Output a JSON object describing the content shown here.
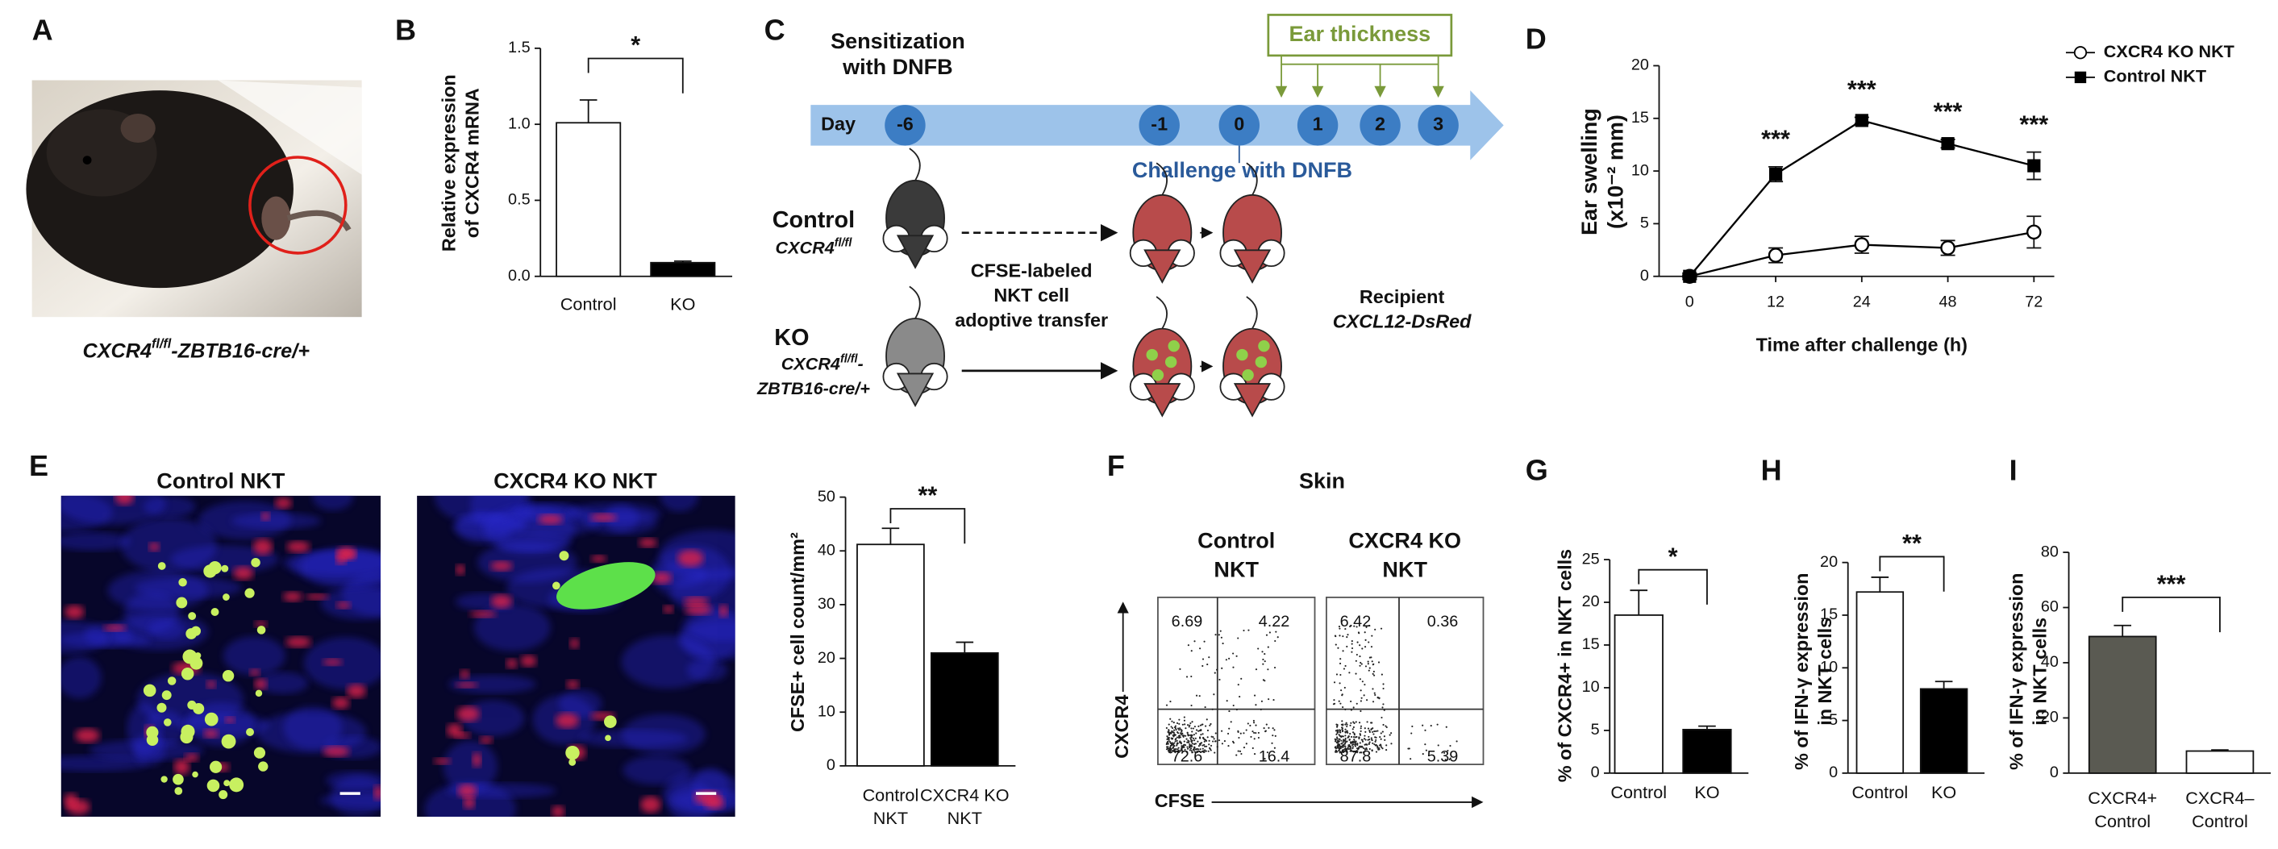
{
  "panel_labels": [
    "A",
    "B",
    "C",
    "D",
    "E",
    "F",
    "G",
    "H",
    "I"
  ],
  "panel_a": {
    "caption": [
      "CXCR4",
      "fl/fl",
      "-ZBTB16-cre/+"
    ]
  },
  "panel_c": {
    "sensitization": [
      "Sensitization",
      "with DNFB"
    ],
    "day_label": "Day",
    "days": [
      "-6",
      "-1",
      "0",
      "1",
      "2",
      "3"
    ],
    "ear_thickness": "Ear thickness",
    "challenge": "Challenge with DNFB",
    "control": {
      "name": "Control",
      "genotype": [
        "CXCR4",
        "fl/fl"
      ]
    },
    "ko": {
      "name": "KO",
      "genotype": [
        "CXCR4",
        "fl/fl",
        "-"
      ],
      "genotype_line2": "ZBTB16-cre/+"
    },
    "transfer": [
      "CFSE-labeled",
      "NKT cell",
      "adoptive transfer"
    ],
    "recipient": [
      "Recipient",
      "CXCL12-DsRed"
    ]
  },
  "panel_e": {
    "titles": [
      "Control NKT",
      "CXCR4 KO NKT"
    ]
  },
  "panel_f": {
    "title": "Skin",
    "columns": [
      [
        "Control",
        "NKT"
      ],
      [
        "CXCR4 KO",
        "NKT"
      ]
    ],
    "quadrants": [
      [
        6.69,
        4.22,
        72.6,
        16.4
      ],
      [
        6.42,
        0.36,
        87.8,
        5.39
      ]
    ],
    "y_axis": "CXCR4",
    "x_axis": "CFSE"
  },
  "chart_data": [
    {
      "type": "bar",
      "ylabel": [
        "Relative expression",
        "of CXCR4 mRNA"
      ],
      "categories": [
        [
          "Control"
        ],
        [
          "KO"
        ]
      ],
      "values": [
        1.01,
        0.09
      ],
      "errors": [
        0.15,
        0.01
      ],
      "colors": [
        "#ffffff",
        "#000000"
      ],
      "ylim": [
        0,
        1.5
      ],
      "yticks": [
        {
          "value": 0,
          "label": "0.0"
        },
        0.5,
        {
          "value": 1,
          "label": "1.0"
        },
        1.5
      ],
      "significance": "*"
    },
    {
      "type": "line",
      "ylabel": [
        "Ear swelling",
        "(x10⁻² mm)"
      ],
      "xlabel": "Time after challenge (h)",
      "categories": [
        "0",
        "12",
        "24",
        "48",
        "72"
      ],
      "series": [
        {
          "name": "CXCR4 KO NKT",
          "color": "#000000",
          "marker": "circle-open",
          "values": [
            0,
            2,
            3,
            2.7,
            4.2
          ],
          "errors": [
            0.3,
            0.7,
            0.8,
            0.7,
            1.5
          ]
        },
        {
          "name": "Control NKT",
          "color": "#000000",
          "marker": "square",
          "values": [
            0,
            9.7,
            14.8,
            12.6,
            10.5
          ],
          "errors": [
            0.3,
            0.7,
            0.3,
            0.4,
            1.3
          ]
        }
      ],
      "ylim": [
        0,
        20
      ],
      "yticks": [
        0,
        5,
        10,
        15,
        20
      ],
      "significance": [
        "***",
        "***",
        "***",
        "***"
      ]
    },
    {
      "type": "bar",
      "ylabel": [
        "CFSE+ cell count/mm²"
      ],
      "categories": [
        [
          "Control",
          "NKT"
        ],
        [
          "CXCR4 KO",
          "NKT"
        ]
      ],
      "values": [
        41.2,
        21
      ],
      "errors": [
        3,
        2
      ],
      "colors": [
        "#ffffff",
        "#000000"
      ],
      "ylim": [
        0,
        50
      ],
      "yticks": [
        0,
        10,
        20,
        30,
        40,
        50
      ],
      "significance": "**"
    },
    {
      "type": "bar",
      "ylabel": [
        "% of CXCR4+ in NKT cells"
      ],
      "categories": [
        [
          "Control"
        ],
        [
          "KO"
        ]
      ],
      "values": [
        18.5,
        5.1
      ],
      "errors": [
        2.9,
        0.4
      ],
      "colors": [
        "#ffffff",
        "#000000"
      ],
      "ylim": [
        0,
        25
      ],
      "yticks": [
        0,
        5,
        10,
        15,
        20,
        25
      ],
      "significance": "*"
    },
    {
      "type": "bar",
      "ylabel": [
        "% of IFN-γ expression",
        "in NKT cells"
      ],
      "categories": [
        [
          "Control"
        ],
        [
          "KO"
        ]
      ],
      "values": [
        17.2,
        8.0
      ],
      "errors": [
        1.4,
        0.7
      ],
      "colors": [
        "#ffffff",
        "#000000"
      ],
      "ylim": [
        0,
        20
      ],
      "yticks": [
        0,
        5,
        10,
        15,
        20
      ],
      "significance": "**"
    },
    {
      "type": "bar",
      "ylabel": [
        "% of IFN-γ expression",
        "in NKT cells"
      ],
      "categories": [
        [
          "CXCR4+",
          "Control"
        ],
        [
          "CXCR4–",
          "Control"
        ]
      ],
      "values": [
        49.5,
        8
      ],
      "errors": [
        4,
        0.4
      ],
      "colors": [
        "#5a5a52",
        "#ffffff"
      ],
      "ylim": [
        0,
        80
      ],
      "yticks": [
        0,
        20,
        40,
        60,
        80
      ],
      "significance": "***"
    }
  ]
}
